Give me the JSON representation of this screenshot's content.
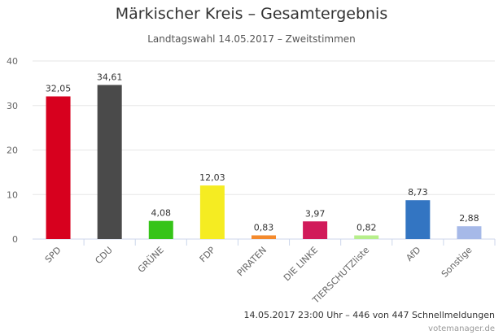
{
  "chart_data": {
    "type": "bar",
    "title": "Märkischer Kreis – Gesamtergebnis",
    "subtitle": "Landtagswahl 14.05.2017 – Zweitstimmen",
    "categories": [
      "SPD",
      "CDU",
      "GRÜNE",
      "FDP",
      "PIRATEN",
      "DIE LINKE",
      "TIERSCHUTZliste",
      "AfD",
      "Sonstige"
    ],
    "values": [
      32.05,
      34.61,
      4.08,
      12.03,
      0.83,
      3.97,
      0.82,
      8.73,
      2.88
    ],
    "value_labels": [
      "32,05",
      "34,61",
      "4,08",
      "12,03",
      "0,83",
      "3,97",
      "0,82",
      "8,73",
      "2,88"
    ],
    "colors": [
      "#d7001e",
      "#4a4a4a",
      "#35c418",
      "#f5ec22",
      "#f48a2d",
      "#d11a5a",
      "#b7ef8c",
      "#3375c2",
      "#a6b9e8"
    ],
    "ylim": [
      0,
      40
    ],
    "yticks": [
      0,
      10,
      20,
      30,
      40
    ],
    "grid": true,
    "legend": "none"
  },
  "footer": "14.05.2017 23:00 Uhr – 446 von 447 Schnellmeldungen",
  "credit": "votemanager.de"
}
